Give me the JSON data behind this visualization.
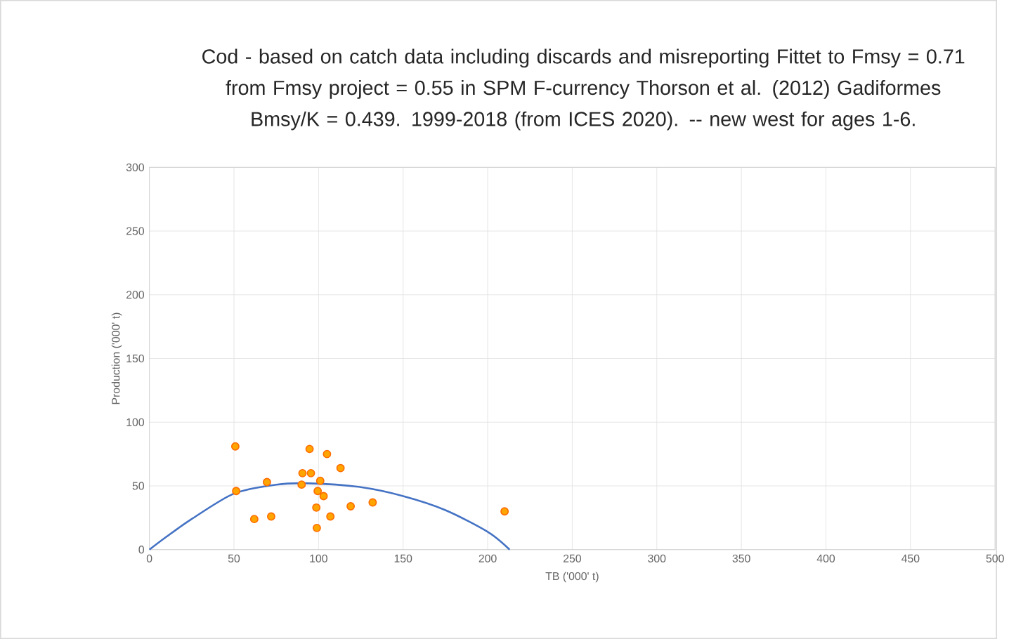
{
  "chart_data": {
    "type": "scatter",
    "title": "Cod   - based on catch data including discards and misreporting Fittet to Fmsy = 0.71 from Fmsy project = 0.55 in SPM F-currency Thorson et al. (2012) Gadiformes  Bmsy/K = 0.439. 1999-2018 (from ICES 2020). -- new west for ages 1-6.",
    "xlabel": "TB ('000' t)",
    "ylabel": "Production ('000' t)",
    "series": [
      {
        "color": "#ffa500",
        "marker": "circle",
        "x": [
          50.8,
          51.3,
          62,
          69.5,
          72,
          90,
          90.5,
          94.7,
          95.5,
          98.7,
          99,
          99.5,
          101,
          103,
          105,
          107,
          113,
          119,
          132,
          210
        ],
        "values": [
          81,
          46,
          24,
          53,
          26,
          51,
          60,
          79,
          60,
          33,
          17,
          46,
          54,
          42,
          75,
          26,
          64,
          34,
          37,
          30
        ]
      },
      {
        "type": "line",
        "color": "#4472c4",
        "marker": "none",
        "x": [
          0,
          10,
          25,
          50,
          75,
          95,
          125,
          150,
          175,
          200,
          213
        ],
        "values": [
          0,
          10,
          24,
          44,
          51,
          52,
          49,
          42,
          31,
          14,
          0
        ]
      }
    ],
    "xlim": [
      0,
      500
    ],
    "ylim": [
      0,
      300
    ],
    "xticks": [
      0,
      50,
      100,
      150,
      200,
      250,
      300,
      350,
      400,
      450,
      500
    ],
    "yticks": [
      0,
      50,
      100,
      150,
      200,
      250,
      300
    ],
    "grid": true
  }
}
